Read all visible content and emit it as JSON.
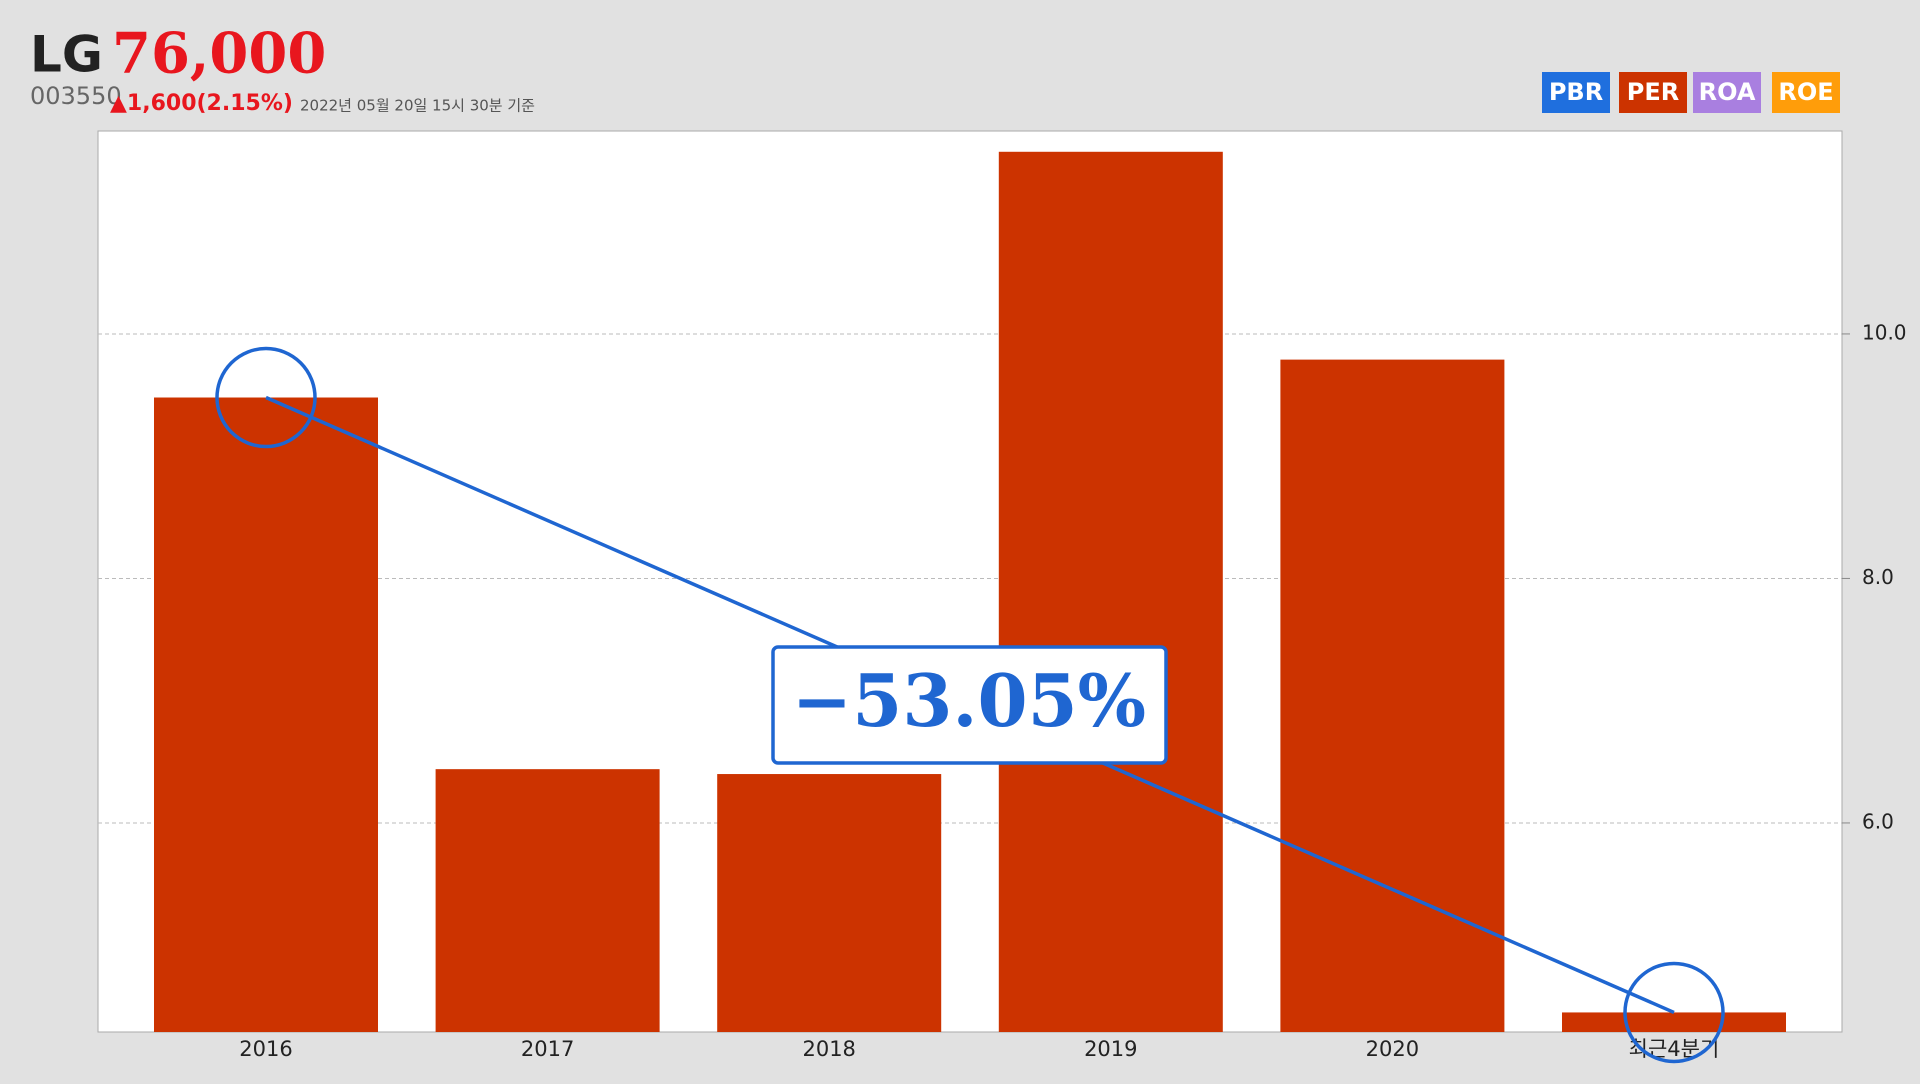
{
  "header": {
    "name": "LG",
    "price": "76,000",
    "code": "003550",
    "change": "▲1,600(2.15%)",
    "timestamp": "2022년 05월 20일 15시 30분 기준"
  },
  "buttons": [
    {
      "label": "PBR",
      "color": "#1f6fde"
    },
    {
      "label": "PER",
      "color": "#cc3300"
    },
    {
      "label": "ROA",
      "color": "#a97fe0"
    },
    {
      "label": "ROE",
      "color": "#ff9d0a"
    }
  ],
  "chart_data": {
    "type": "bar",
    "categories": [
      "2016",
      "2017",
      "2018",
      "2019",
      "2020",
      "최근4분기"
    ],
    "values": [
      9.48,
      6.44,
      6.4,
      11.49,
      9.79,
      4.45
    ],
    "color": "#cc3300",
    "ylim": [
      4.29,
      11.66
    ],
    "yticks": [
      {
        "value": 6,
        "label": "6.0"
      },
      {
        "value": 8,
        "label": "8.0"
      },
      {
        "value": 10,
        "label": "10.0"
      }
    ],
    "grid": true,
    "annotation": "−53.05%",
    "annotation_color": "#1f66d1"
  }
}
